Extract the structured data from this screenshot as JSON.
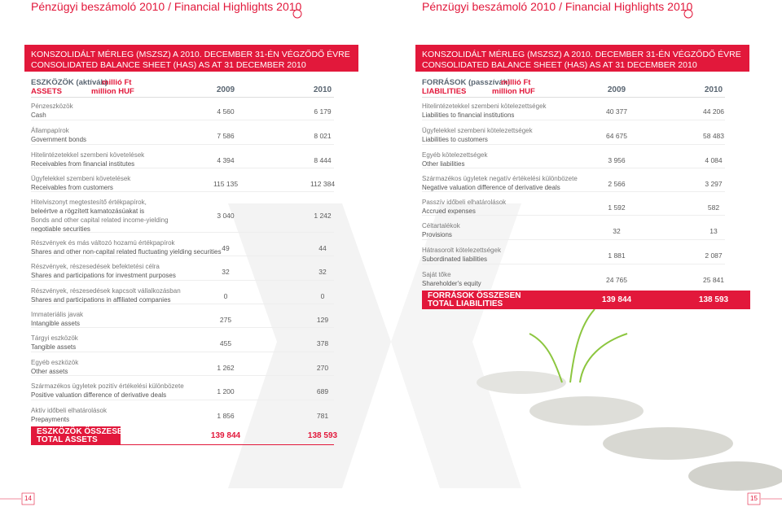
{
  "left_page": {
    "header": "Pénzügyi beszámoló 2010  /  Financial Highlights 2010",
    "banner": [
      "KONSZOLIDÁLT MÉRLEG (MSZSZ) A 2010. DECEMBER 31-ÉN VÉGZŐDŐ ÉVRE",
      "CONSOLIDATED BALANCE SHEET (HAS) AS AT 31 DECEMBER 2010"
    ],
    "table": {
      "heading": {
        "title_hu": "ESZKÖZÖK (aktívák)",
        "unit_hu": "millió Ft",
        "title_en": "ASSETS",
        "unit_en": "million HUF"
      },
      "years": [
        "2009",
        "2010"
      ],
      "rows": [
        {
          "label": [
            "Pénzeszközök",
            "Cash"
          ],
          "values": [
            "4 560",
            "6 179"
          ]
        },
        {
          "label": [
            "Állampapírok",
            "Government bonds"
          ],
          "values": [
            "7 586",
            "8 021"
          ]
        },
        {
          "label": [
            "Hitelintézetekkel szembeni követelések",
            "Receivables from financial institutes"
          ],
          "values": [
            "4 394",
            "8 444"
          ]
        },
        {
          "label": [
            "Ügyfelekkel szembeni követelések",
            "Receivables from customers"
          ],
          "values": [
            "115 135",
            "112 384"
          ]
        },
        {
          "label": [
            "Hitelviszonyt megtestesítő értékpapírok,",
            "beleértve a rögzített kamatozásúakat is",
            "Bonds and other capital related income-yielding",
            "negotiable securities"
          ],
          "values": [
            "3 040",
            "1 242"
          ]
        },
        {
          "label": [
            "Részvények és más változó hozamú értékpapírok",
            "Shares and other non-capital related fluctuating yielding securities"
          ],
          "values": [
            "49",
            "44"
          ]
        },
        {
          "label": [
            "Részvények, részesedések befektetési célra",
            "Shares and participations for investment purposes"
          ],
          "values": [
            "32",
            "32"
          ]
        },
        {
          "label": [
            "Részvények, részesedések kapcsolt vállalkozásban",
            "Shares and participations in affiliated companies"
          ],
          "values": [
            "0",
            "0"
          ]
        },
        {
          "label": [
            "Immateriális javak",
            "Intangible assets"
          ],
          "values": [
            "275",
            "129"
          ]
        },
        {
          "label": [
            "Tárgyi eszközök",
            "Tangible assets"
          ],
          "values": [
            "455",
            "378"
          ]
        },
        {
          "label": [
            "Egyéb eszközök",
            "Other assets"
          ],
          "values": [
            "1 262",
            "270"
          ]
        },
        {
          "label": [
            "Származékos ügyletek pozitív értékelési különbözete",
            "Positive valuation difference of derivative deals"
          ],
          "values": [
            "1 200",
            "689"
          ]
        },
        {
          "label": [
            "Aktív időbeli elhatárolások",
            "Prepayments"
          ],
          "values": [
            "1 856",
            "781"
          ]
        }
      ],
      "total": {
        "label": [
          "ESZKÖZÖK ÖSSZESEN",
          "TOTAL ASSETS"
        ],
        "values": [
          "139 844",
          "138 593"
        ]
      }
    },
    "page_number": "14"
  },
  "right_page": {
    "header": "Pénzügyi beszámoló 2010  /  Financial Highlights 2010",
    "banner": [
      "KONSZOLIDÁLT MÉRLEG (MSZSZ) A 2010. DECEMBER 31-ÉN VÉGZŐDŐ ÉVRE",
      "CONSOLIDATED BALANCE SHEET (HAS) AS AT 31 DECEMBER 2010"
    ],
    "table": {
      "heading": {
        "title_hu": "FORRÁSOK (passzívák)",
        "unit_hu": "millió Ft",
        "title_en": "LIABILITIES",
        "unit_en": "million HUF"
      },
      "years": [
        "2009",
        "2010"
      ],
      "rows": [
        {
          "label": [
            "Hitelintézetekkel szembeni kötelezettségek",
            "Liabilities to financial institutions"
          ],
          "values": [
            "40 377",
            "44 206"
          ]
        },
        {
          "label": [
            "Ügyfelekkel szembeni kötelezettségek",
            "Liabilities to customers"
          ],
          "values": [
            "64 675",
            "58 483"
          ]
        },
        {
          "label": [
            "Egyéb kötelezettségek",
            "Other liabilities"
          ],
          "values": [
            "3 956",
            "4 084"
          ]
        },
        {
          "label": [
            "Származékos ügyletek negatív értékelési különbözete",
            "Negative valuation difference of derivative deals"
          ],
          "values": [
            "2 566",
            "3 297"
          ]
        },
        {
          "label": [
            "Passzív időbeli elhatárolások",
            "Accrued expenses"
          ],
          "values": [
            "1 592",
            "582"
          ]
        },
        {
          "label": [
            "Céltartalékok",
            "Provisions"
          ],
          "values": [
            "32",
            "13"
          ]
        },
        {
          "label": [
            "Hátrasorolt kötelezettségek",
            "Subordinated liabilities"
          ],
          "values": [
            "1 881",
            "2 087"
          ]
        },
        {
          "label": [
            "Saját tőke",
            "Shareholder's equity"
          ],
          "values": [
            "24 765",
            "25 841"
          ]
        }
      ],
      "total": {
        "label": [
          "FORRÁSOK ÖSSZESEN",
          "TOTAL LIABILITIES"
        ],
        "values": [
          "139 844",
          "138 593"
        ]
      }
    },
    "page_number": "15"
  }
}
